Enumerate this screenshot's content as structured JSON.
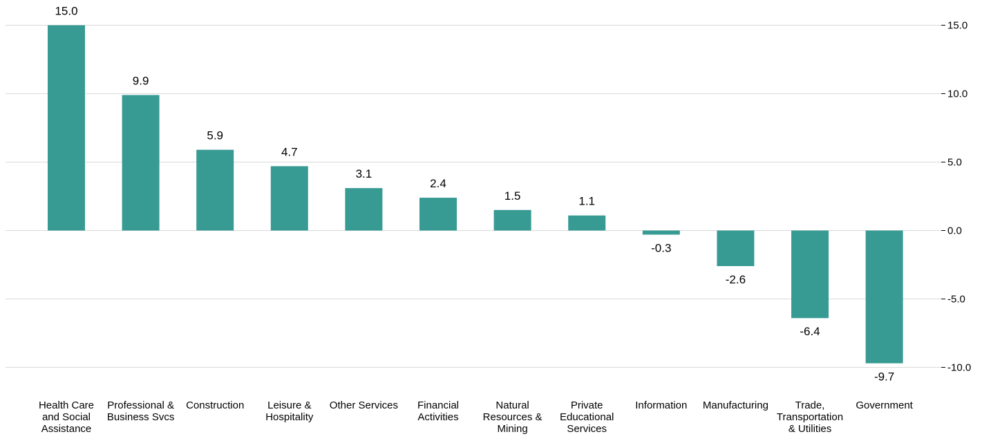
{
  "chart_data": {
    "type": "bar",
    "categories": [
      [
        "Health Care",
        "and Social",
        "Assistance"
      ],
      [
        "Professional &",
        "Business Svcs"
      ],
      [
        "Construction"
      ],
      [
        "Leisure &",
        "Hospitality"
      ],
      [
        "Other Services"
      ],
      [
        "Financial",
        "Activities"
      ],
      [
        "Natural",
        "Resources &",
        "Mining"
      ],
      [
        "Private",
        "Educational",
        "Services"
      ],
      [
        "Information"
      ],
      [
        "Manufacturing"
      ],
      [
        "Trade,",
        "Transportation",
        "& Utilities"
      ],
      [
        "Government"
      ]
    ],
    "values": [
      15.0,
      9.9,
      5.9,
      4.7,
      3.1,
      2.4,
      1.5,
      1.1,
      -0.3,
      -2.6,
      -6.4,
      -9.7
    ],
    "value_labels": [
      "15.0",
      "9.9",
      "5.9",
      "4.7",
      "3.1",
      "2.4",
      "1.5",
      "1.1",
      "-0.3",
      "-2.6",
      "-6.4",
      "-9.7"
    ],
    "ylim": [
      -10,
      15
    ],
    "yticks": [
      15.0,
      10.0,
      5.0,
      0.0,
      -5.0,
      -10.0
    ],
    "ytick_labels": [
      "15.0",
      "10.0",
      "5.0",
      "0.0",
      "-5.0",
      "-10.0"
    ],
    "yaxis_position": "right",
    "grid": true,
    "bar_color": "#379a93",
    "title": "",
    "xlabel": "",
    "ylabel": ""
  }
}
